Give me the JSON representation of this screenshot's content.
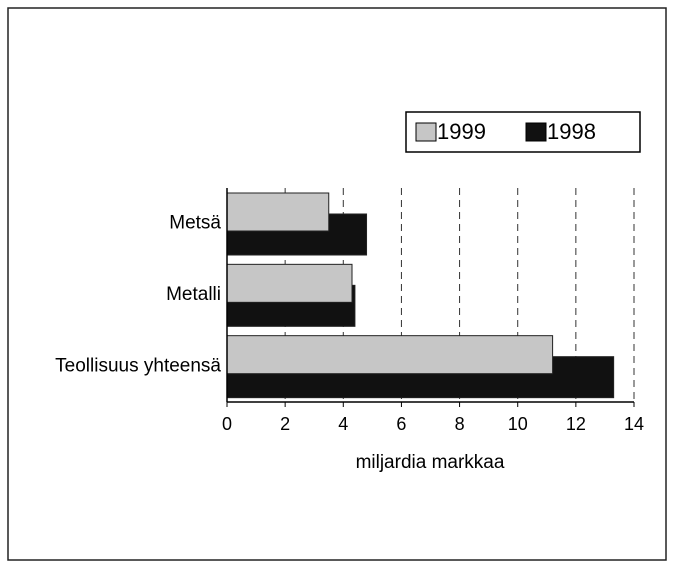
{
  "chart_data": {
    "type": "bar",
    "orientation": "horizontal",
    "categories": [
      "Metsä",
      "Metalli",
      "Teollisuus yhteensä"
    ],
    "series": [
      {
        "name": "1999",
        "color": "#c6c6c6",
        "values": [
          3.5,
          4.3,
          11.2
        ]
      },
      {
        "name": "1998",
        "color": "#111111",
        "values": [
          4.8,
          4.4,
          13.3
        ]
      }
    ],
    "xlabel": "miljardia markkaa",
    "xlim": [
      0,
      14
    ],
    "xticks": [
      0,
      2,
      4,
      6,
      8,
      10,
      12,
      14
    ],
    "grid": true,
    "legend": "top-right"
  }
}
